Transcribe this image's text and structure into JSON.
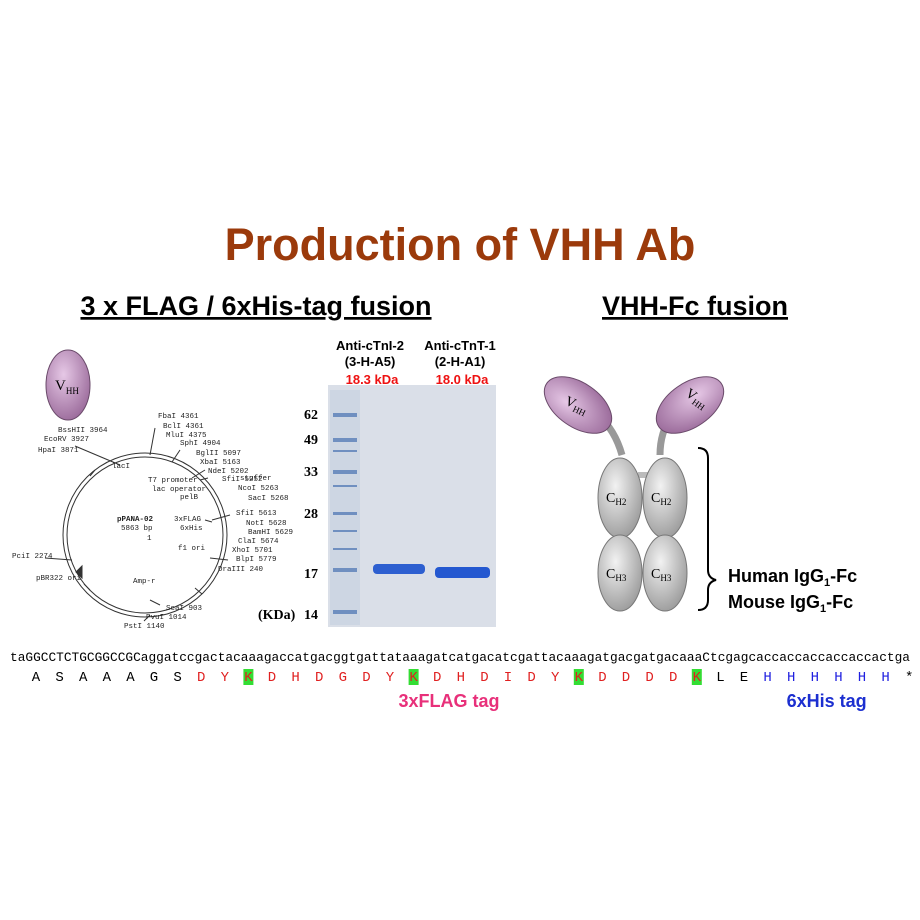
{
  "title": "Production of VHH Ab",
  "left_heading": "3 x FLAG / 6xHis-tag fusion",
  "right_heading": "VHH-Fc fusion",
  "vhh_label": {
    "main": "V",
    "sub": "HH"
  },
  "plasmid": {
    "name": "pPANA-02",
    "size": "5863 bp",
    "labels": [
      "FbaI 4361",
      "BclI 4361",
      "MluI 4375",
      "BssHII 3964",
      "EcoRV 3927",
      "HpaI 3871",
      "SphI 4904",
      "BglII 5097",
      "XbaI 5163",
      "NdeI 5202",
      "lacI",
      "T7 promoter",
      "lac operator",
      "pelB",
      "stuffer",
      "SfiI 5252",
      "NcoI 5263",
      "SacI 5268",
      "3xFLAG",
      "6xHis",
      "SfiI 5613",
      "NotI 5628",
      "BamHI 5629",
      "ClaI 5674",
      "XhoI 5701",
      "BlpI 5779",
      "1",
      "f1 ori",
      "DraIII 240",
      "PciI 2274",
      "pBR322 ori",
      "Amp-r",
      "ScaI 903",
      "PvuI 1014",
      "PstI 1140"
    ]
  },
  "gel": {
    "lanes": [
      {
        "name": "Anti-cTnI-2",
        "clone": "(3-H-A5)",
        "size": "18.3 kDa"
      },
      {
        "name": "Anti-cTnT-1",
        "clone": "(2-H-A1)",
        "size": "18.0 kDa"
      }
    ],
    "markers": [
      "62",
      "49",
      "33",
      "28",
      "17",
      "14"
    ],
    "unit": "(KDa)"
  },
  "fc": {
    "ch2": {
      "main": "C",
      "sub": "H2"
    },
    "ch3": {
      "main": "C",
      "sub": "H3"
    },
    "formats": [
      {
        "pre": "Human IgG",
        "sub": "1",
        "post": "-Fc"
      },
      {
        "pre": "Mouse IgG",
        "sub": "1",
        "post": "-Fc"
      }
    ]
  },
  "sequence": {
    "dna": "taGGCCTCTGCGGCCGCaggatccgactacaaagaccatgacggtgattataaagatcatgacatcgattacaaagatgacgatgacaaaCtcgagcaccaccaccaccaccactga",
    "protein": [
      {
        "residues": [
          "A",
          "S",
          "A",
          "A",
          "A",
          "G",
          "S"
        ],
        "color": "#000000"
      },
      {
        "residues": [
          "D",
          "Y",
          "K",
          "D",
          "H",
          "D",
          "G",
          "D",
          "Y",
          "K",
          "D",
          "H",
          "D",
          "I",
          "D",
          "Y",
          "K",
          "D",
          "D",
          "D",
          "D",
          "K"
        ],
        "color": "#e02020",
        "tag": "3xFLAG tag",
        "tag_color": "#e8307a"
      },
      {
        "residues": [
          "L",
          "E"
        ],
        "color": "#000000"
      },
      {
        "residues": [
          "H",
          "H",
          "H",
          "H",
          "H",
          "H"
        ],
        "color": "#2020e0",
        "tag": "6xHis tag",
        "tag_color": "#1c2fd0"
      },
      {
        "residues": [
          "*"
        ],
        "color": "#000000"
      }
    ],
    "highlight_residue": "K",
    "highlight_color": "#33dd33"
  }
}
